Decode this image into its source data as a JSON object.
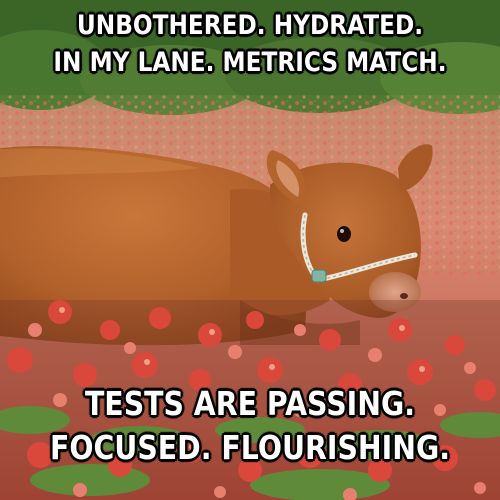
{
  "meme": {
    "top_text": {
      "line1": "UNBOTHERED. HYDRATED.",
      "line2": "IN MY LANE. METRICS MATCH."
    },
    "bottom_text": {
      "line1": "TESTS ARE PASSING.",
      "line2": "FOCUSED. FLOURISHING."
    }
  },
  "colors": {
    "cow_fur": "#b8642a",
    "cow_shadow": "#8a4418",
    "flower_red": "#d9483a",
    "flower_pink": "#e8806f",
    "foliage_green": "#5f8a3a",
    "halter_white": "#ece8dc"
  }
}
